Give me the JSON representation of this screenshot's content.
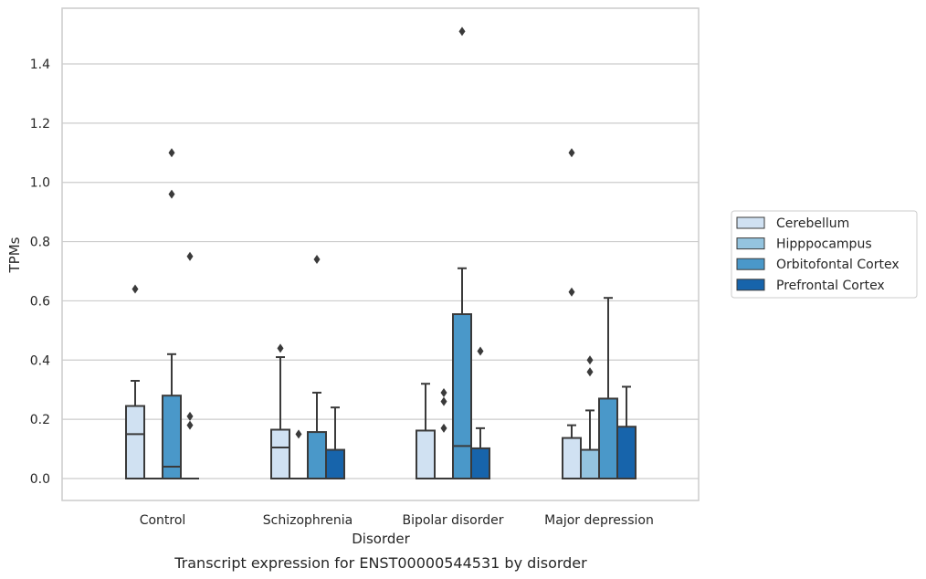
{
  "chart_data": {
    "type": "box",
    "xlabel": "Disorder",
    "ylabel": "TPMs",
    "caption": "Transcript expression for ENST00000544531 by disorder",
    "ylim": [
      -0.07,
      1.6
    ],
    "yticks": [
      "0.0",
      "0.2",
      "0.4",
      "0.6",
      "0.8",
      "1.0",
      "1.2",
      "1.4"
    ],
    "grid": "horizontal",
    "legend_position": "right",
    "categories": [
      "Control",
      "Schizophrenia",
      "Bipolar disorder",
      "Major depression"
    ],
    "series": [
      {
        "name": "Cerebellum",
        "color": "#d0e1f2",
        "boxes": [
          {
            "q1": 0.0,
            "median": 0.15,
            "q3": 0.245,
            "whisker_low": 0.0,
            "whisker_high": 0.33,
            "outliers": [
              0.64
            ]
          },
          {
            "q1": 0.0,
            "median": 0.105,
            "q3": 0.165,
            "whisker_low": 0.0,
            "whisker_high": 0.41,
            "outliers": [
              0.44
            ]
          },
          {
            "q1": 0.0,
            "median": 0.0,
            "q3": 0.162,
            "whisker_low": 0.0,
            "whisker_high": 0.32,
            "outliers": []
          },
          {
            "q1": 0.0,
            "median": 0.0,
            "q3": 0.137,
            "whisker_low": 0.0,
            "whisker_high": 0.18,
            "outliers": [
              0.63,
              1.1
            ]
          }
        ]
      },
      {
        "name": "Hipppocampus",
        "color": "#94c4df",
        "boxes": [
          {
            "q1": 0.0,
            "median": 0.0,
            "q3": 0.0,
            "whisker_low": 0.0,
            "whisker_high": 0.0,
            "outliers": []
          },
          {
            "q1": 0.0,
            "median": 0.0,
            "q3": 0.0,
            "whisker_low": 0.0,
            "whisker_high": 0.0,
            "outliers": [
              0.15
            ]
          },
          {
            "q1": 0.0,
            "median": 0.0,
            "q3": 0.0,
            "whisker_low": 0.0,
            "whisker_high": 0.0,
            "outliers": [
              0.17,
              0.26,
              0.29
            ]
          },
          {
            "q1": 0.0,
            "median": 0.0,
            "q3": 0.097,
            "whisker_low": 0.0,
            "whisker_high": 0.23,
            "outliers": [
              0.36,
              0.4
            ]
          }
        ]
      },
      {
        "name": "Orbitofontal Cortex",
        "color": "#4a98c9",
        "boxes": [
          {
            "q1": 0.0,
            "median": 0.04,
            "q3": 0.28,
            "whisker_low": 0.0,
            "whisker_high": 0.42,
            "outliers": [
              0.96,
              1.1
            ]
          },
          {
            "q1": 0.0,
            "median": 0.0,
            "q3": 0.157,
            "whisker_low": 0.0,
            "whisker_high": 0.29,
            "outliers": [
              0.74
            ]
          },
          {
            "q1": 0.0,
            "median": 0.11,
            "q3": 0.555,
            "whisker_low": 0.0,
            "whisker_high": 0.71,
            "outliers": [
              1.51
            ]
          },
          {
            "q1": 0.0,
            "median": 0.0,
            "q3": 0.27,
            "whisker_low": 0.0,
            "whisker_high": 0.61,
            "outliers": []
          }
        ]
      },
      {
        "name": "Prefrontal Cortex",
        "color": "#1764ab",
        "boxes": [
          {
            "q1": 0.0,
            "median": 0.0,
            "q3": 0.0,
            "whisker_low": 0.0,
            "whisker_high": 0.0,
            "outliers": [
              0.18,
              0.21,
              0.75
            ]
          },
          {
            "q1": 0.0,
            "median": 0.0,
            "q3": 0.097,
            "whisker_low": 0.0,
            "whisker_high": 0.24,
            "outliers": []
          },
          {
            "q1": 0.0,
            "median": 0.0,
            "q3": 0.102,
            "whisker_low": 0.0,
            "whisker_high": 0.17,
            "outliers": [
              0.43
            ]
          },
          {
            "q1": 0.0,
            "median": 0.0,
            "q3": 0.175,
            "whisker_low": 0.0,
            "whisker_high": 0.31,
            "outliers": []
          }
        ]
      }
    ]
  }
}
